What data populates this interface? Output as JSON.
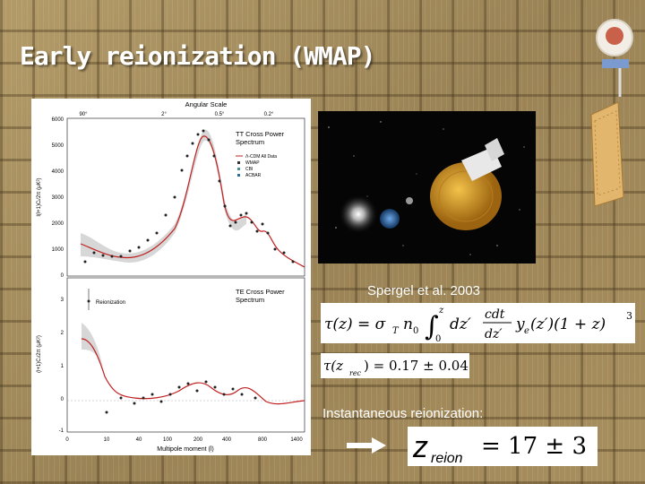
{
  "slide": {
    "title": "Early reionization (WMAP)"
  },
  "figure": {
    "top_axis_title": "Angular Scale",
    "top_ticks": [
      "90°",
      "2°",
      "0.5°",
      "0.2°"
    ],
    "tt": {
      "title": "TT Cross Power",
      "title2": "Spectrum",
      "ylabel": "l(l+1)Cₗ/2π (μK²)",
      "yticks": [
        "6000",
        "5000",
        "4000",
        "3000",
        "2000",
        "1000",
        "0"
      ],
      "legend": [
        "Λ-CDM All Data",
        "WMAP",
        "CBI",
        "ACBAR"
      ]
    },
    "te": {
      "title": "TE Cross Power",
      "title2": "Spectrum",
      "annotation": "Reionization",
      "ylabel": "(l+1)Cₗ/2π (μK²)",
      "yticks": [
        "3",
        "2",
        "1",
        "0",
        "-1"
      ]
    },
    "xlabel": "Multipole moment (l)",
    "xticks": [
      "0",
      "10",
      "40",
      "100",
      "200",
      "400",
      "800",
      "1400"
    ]
  },
  "caption": "Spergel et al. 2003",
  "tau_equation": {
    "lhs": "τ(z) = σ",
    "sub_T": "T",
    "n0": "n",
    "n0_sub": "0",
    "int_upper": "z",
    "int_lower": "0",
    "dz": "dz′",
    "frac_num": "cdt",
    "frac_den": "dz′",
    "tail": "y",
    "tail_sub": "e",
    "tail2": "(z′)(1 + z)",
    "exp": "3"
  },
  "tau_value": {
    "lhs": "τ(z",
    "sub": "rec",
    "rhs": ") = 0.17 ± 0.04"
  },
  "instantaneous_label": "Instantaneous reionization:",
  "zreion": {
    "z": "z",
    "sub": "reion",
    "rhs": "= 17 ± 3"
  }
}
